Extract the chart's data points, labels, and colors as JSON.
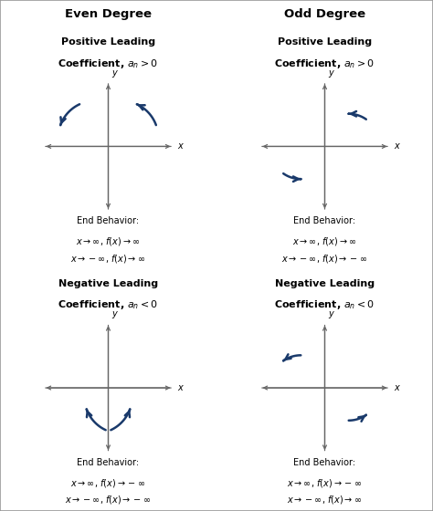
{
  "header_even": "Even Degree",
  "header_odd": "Odd Degree",
  "panels": [
    {
      "title_line1": "Positive Leading",
      "title_line2": "Coefficient, $a_n > 0$",
      "end_behavior_line1": "$x \\rightarrow \\infty$, $f(x) \\rightarrow \\infty$",
      "end_behavior_line2": "$x \\rightarrow -\\infty$, $f(x) \\rightarrow \\infty$",
      "curve_type": "even_pos"
    },
    {
      "title_line1": "Positive Leading",
      "title_line2": "Coefficient, $a_n > 0$",
      "end_behavior_line1": "$x \\rightarrow \\infty$, $f(x) \\rightarrow \\infty$",
      "end_behavior_line2": "$x \\rightarrow -\\infty$, $f(x) \\rightarrow -\\infty$",
      "curve_type": "odd_pos"
    },
    {
      "title_line1": "Negative Leading",
      "title_line2": "Coefficient, $a_n < 0$",
      "end_behavior_line1": "$x \\rightarrow \\infty$, $f(x) \\rightarrow -\\infty$",
      "end_behavior_line2": "$x \\rightarrow -\\infty$, $f(x) \\rightarrow -\\infty$",
      "curve_type": "even_neg"
    },
    {
      "title_line1": "Negative Leading",
      "title_line2": "Coefficient, $a_n < 0$",
      "end_behavior_line1": "$x \\rightarrow \\infty$, $f(x) \\rightarrow -\\infty$",
      "end_behavior_line2": "$x \\rightarrow -\\infty$, $f(x) \\rightarrow \\infty$",
      "curve_type": "odd_neg"
    }
  ],
  "arrow_color": "#1a3a6b",
  "axis_color": "#666666",
  "header_bg": "#e0e0e0",
  "border_color": "#999999",
  "text_color": "#000000",
  "title_fontsize": 8.0,
  "label_fontsize": 7.0,
  "header_fontsize": 9.5
}
